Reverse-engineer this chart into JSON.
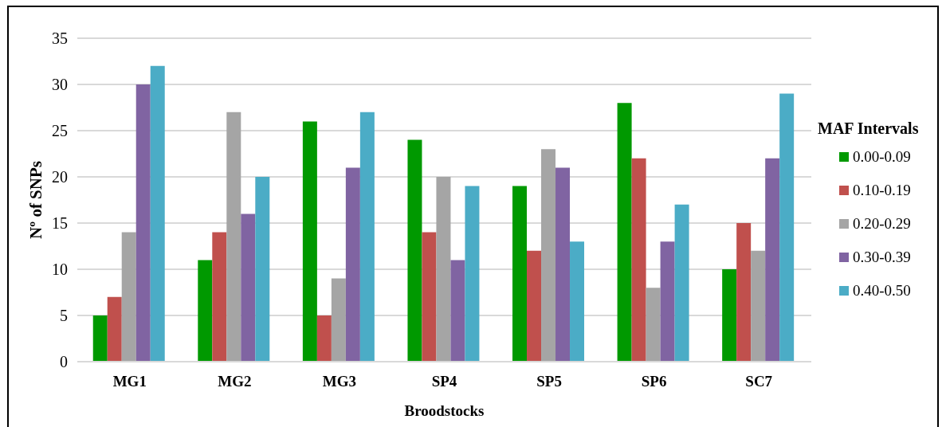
{
  "chart_data": {
    "type": "bar",
    "xlabel": "Broodstocks",
    "ylabel": "Nº of SNPs",
    "legend_title": "MAF Intervals",
    "categories": [
      "MG1",
      "MG2",
      "MG3",
      "SP4",
      "SP5",
      "SP6",
      "SC7"
    ],
    "series": [
      {
        "name": "0.00-0.09",
        "color": "#009900",
        "values": [
          5,
          11,
          26,
          24,
          19,
          28,
          10
        ]
      },
      {
        "name": "0.10-0.19",
        "color": "#c0504d",
        "values": [
          7,
          14,
          5,
          14,
          12,
          22,
          15
        ]
      },
      {
        "name": "0.20-0.29",
        "color": "#a5a5a5",
        "values": [
          14,
          27,
          9,
          20,
          23,
          8,
          12
        ]
      },
      {
        "name": "0.30-0.39",
        "color": "#8064a2",
        "values": [
          30,
          16,
          21,
          11,
          21,
          13,
          22
        ]
      },
      {
        "name": "0.40-0.50",
        "color": "#4bacc6",
        "values": [
          32,
          20,
          27,
          19,
          13,
          17,
          29
        ]
      }
    ],
    "ylim": [
      0,
      35
    ],
    "yticks": [
      0,
      5,
      10,
      15,
      20,
      25,
      30,
      35
    ],
    "grid": "y",
    "legend": "right"
  }
}
